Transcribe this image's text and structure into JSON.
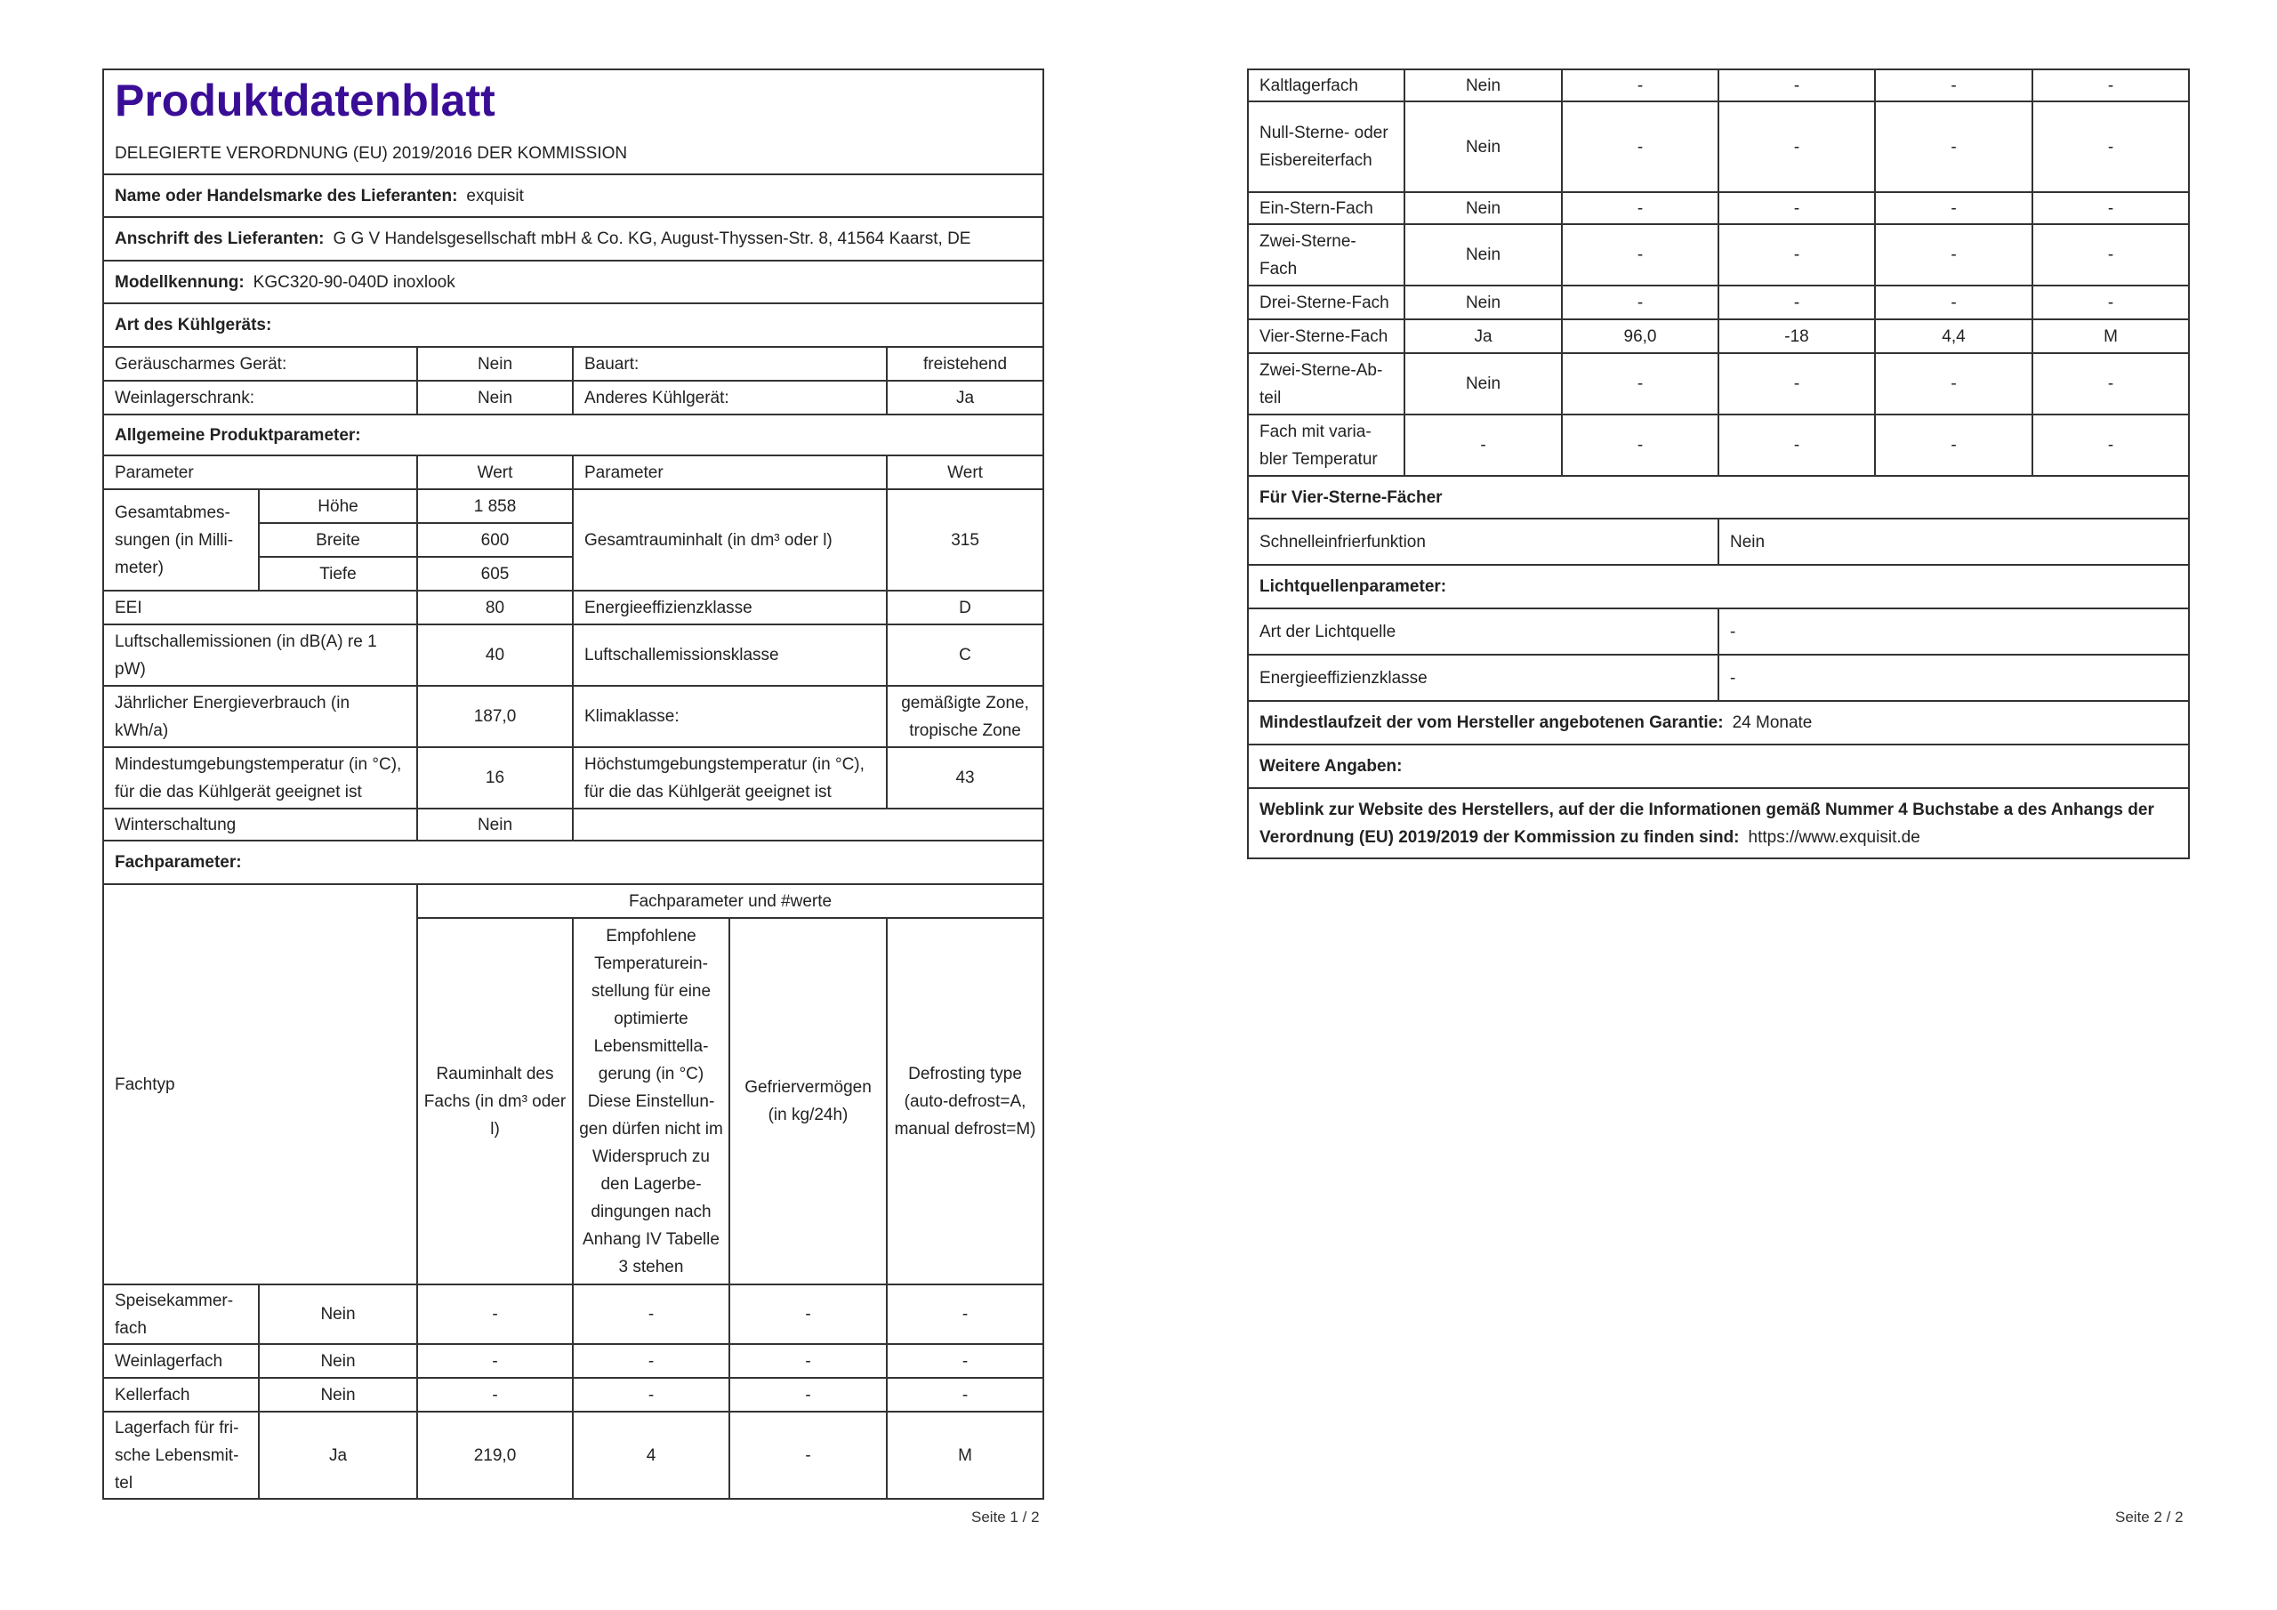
{
  "header": {
    "title": "Produktdatenblatt",
    "subtitle": "DELEGIERTE VERORDNUNG (EU) 2019/2016 DER KOMMISSION"
  },
  "supplier": {
    "name_label": "Name oder Handelsmarke des Lieferanten:",
    "name_value": "exquisit",
    "address_label": "Anschrift des Lieferanten:",
    "address_value": "G G V Handelsgesellschaft mbH & Co. KG, August-Thyssen-Str. 8, 41564 Kaarst, DE",
    "model_label": "Modellkennung:",
    "model_value": "KGC320-90-040D inoxlook"
  },
  "device_type": {
    "heading": "Art des Kühlgeräts:",
    "low_noise_label": "Geräuscharmes Gerät:",
    "low_noise_value": "Nein",
    "design_label": "Bauart:",
    "design_value": "freistehend",
    "wine_label": "Weinlagerschrank:",
    "wine_value": "Nein",
    "other_label": "Anderes Kühlgerät:",
    "other_value": "Ja"
  },
  "general": {
    "heading": "Allgemeine Produktparameter:",
    "col_param": "Parameter",
    "col_value": "Wert",
    "dims_label": "Gesamtabmes­sungen (in Milli­meter)",
    "dims": [
      {
        "label": "Höhe",
        "value": "1 858"
      },
      {
        "label": "Breite",
        "value": "600"
      },
      {
        "label": "Tiefe",
        "value": "605"
      }
    ],
    "volume_label": "Gesamtrauminhalt (in dm³ oder l)",
    "volume_value": "315",
    "eei_label": "EEI",
    "eei_value": "80",
    "eclass_label": "Energieeffizienzklasse",
    "eclass_value": "D",
    "noise_label": "Luftschallemissionen (in dB(A) re 1 pW)",
    "noise_value": "40",
    "noise_class_label": "Luftschallemissionsklasse",
    "noise_class_value": "C",
    "energy_label": "Jährlicher Energieverbrauch (in kWh/a)",
    "energy_value": "187,0",
    "climate_label": "Klimaklasse:",
    "climate_value": "gemäßigte Zone, tropische Zone",
    "min_temp_label": "Mindestumgebungstemperatur (in °C), für die das Kühlgerät geeignet ist",
    "min_temp_value": "16",
    "max_temp_label": "Höchstumgebungstemperatur (in °C), für die das Kühlgerät geeignet ist",
    "max_temp_value": "43",
    "winter_label": "Winterschaltung",
    "winter_value": "Nein"
  },
  "compartments": {
    "heading": "Fachparameter:",
    "group_header": "Fachparameter und #werte",
    "type_label": "Fachtyp",
    "columns": [
      "Rauminhalt des Fachs (in dm³ oder l)",
      "Empfohlene Temperaturein­stellung für ei­ne optimierte Lebensmittella­gerung (in °C) Diese Einstellun­gen dürfen nicht im Widerspruch zu den Lagerbe­dingungen nach Anhang IV Ta­belle 3 stehen",
      "Gefriervermö­gen (in kg/24h)",
      "Defrosting ty­pe (auto-de­frost=A, manu­al defrost=M)"
    ],
    "rows_page1": [
      {
        "name": "Speisekammer­fach",
        "present": "Nein",
        "values": [
          "-",
          "-",
          "-",
          "-"
        ]
      },
      {
        "name": "Weinlagerfach",
        "present": "Nein",
        "values": [
          "-",
          "-",
          "-",
          "-"
        ]
      },
      {
        "name": "Kellerfach",
        "present": "Nein",
        "values": [
          "-",
          "-",
          "-",
          "-"
        ]
      },
      {
        "name": "Lagerfach für fri­sche Lebensmit­tel",
        "present": "Ja",
        "values": [
          "219,0",
          "4",
          "-",
          "M"
        ]
      }
    ],
    "rows_page2": [
      {
        "name": "Kaltlagerfach",
        "present": "Nein",
        "values": [
          "-",
          "-",
          "-",
          "-"
        ]
      },
      {
        "name": "Null-Sterne- oder Eisbereiter­fach",
        "present": "Nein",
        "values": [
          "-",
          "-",
          "-",
          "-"
        ]
      },
      {
        "name": "Ein-Stern-Fach",
        "present": "Nein",
        "values": [
          "-",
          "-",
          "-",
          "-"
        ]
      },
      {
        "name": "Zwei-Ster­ne-Fach",
        "present": "Nein",
        "values": [
          "-",
          "-",
          "-",
          "-"
        ]
      },
      {
        "name": "Drei-Sterne-Fach",
        "present": "Nein",
        "values": [
          "-",
          "-",
          "-",
          "-"
        ]
      },
      {
        "name": "Vier-Sterne-Fach",
        "present": "Ja",
        "values": [
          "96,0",
          "-18",
          "4,4",
          "M"
        ]
      },
      {
        "name": "Zwei-Sterne-Ab­teil",
        "present": "Nein",
        "values": [
          "-",
          "-",
          "-",
          "-"
        ]
      },
      {
        "name": "Fach mit varia­bler Temperatur",
        "present": "-",
        "values": [
          "-",
          "-",
          "-",
          "-"
        ]
      }
    ]
  },
  "four_star": {
    "heading": "Für Vier-Sterne-Fächer",
    "fast_freeze_label": "Schnelleinfrierfunktion",
    "fast_freeze_value": "Nein"
  },
  "light": {
    "heading": "Lichtquellenparameter:",
    "type_label": "Art der Lichtquelle",
    "type_value": "-",
    "class_label": "Energieeffizienzklasse",
    "class_value": "-"
  },
  "warranty": {
    "label": "Mindestlaufzeit der vom Hersteller angebotenen Garantie:",
    "value": "24 Monate"
  },
  "further": {
    "heading": "Weitere Angaben:"
  },
  "weblink": {
    "label": "Weblink zur Website des Herstellers, auf der die Informationen gemäß Nummer 4 Buchstabe a des Anhangs der Verordnung (EU) 2019/2019 der Kommission zu finden sind:",
    "value": "https://www.exquisit.de"
  },
  "pages": {
    "page1": "Seite 1 / 2",
    "page2": "Seite 2 / 2"
  }
}
